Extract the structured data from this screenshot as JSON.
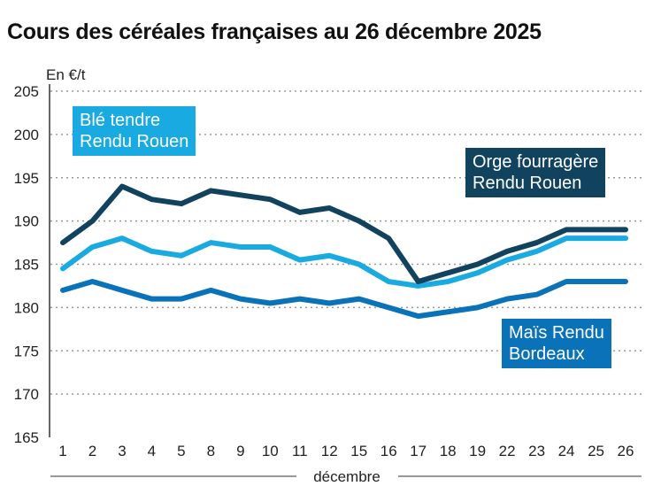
{
  "chart_data": {
    "type": "line",
    "title": "Cours des céréales françaises au 26 décembre 2025",
    "ylabel": "En €/t",
    "xlabel": "décembre",
    "ylim": [
      165,
      205
    ],
    "yticks": [
      165,
      170,
      175,
      180,
      185,
      190,
      195,
      200,
      205
    ],
    "grid": true,
    "categories": [
      "1",
      "2",
      "3",
      "4",
      "5",
      "8",
      "9",
      "10",
      "11",
      "12",
      "15",
      "16",
      "17",
      "18",
      "19",
      "22",
      "23",
      "24",
      "25",
      "26"
    ],
    "series": [
      {
        "name": "Orge fourragère Rendu Rouen",
        "color": "#12435e",
        "values": [
          187.5,
          190,
          194,
          192.5,
          192,
          193.5,
          193,
          192.5,
          191,
          191.5,
          190,
          188,
          183,
          184,
          185,
          186.5,
          187.5,
          189,
          189,
          189
        ]
      },
      {
        "name": "Blé tendre Rendu Rouen",
        "color": "#1aaae2",
        "values": [
          184.5,
          187,
          188,
          186.5,
          186,
          187.5,
          187,
          187,
          185.5,
          186,
          185,
          183,
          182.5,
          183,
          184,
          185.5,
          186.5,
          188,
          188,
          188
        ]
      },
      {
        "name": "Maïs Rendu Bordeaux",
        "color": "#0a72b8",
        "values": [
          182,
          183,
          182,
          181,
          181,
          182,
          181,
          180.5,
          181,
          180.5,
          181,
          180,
          179,
          179.5,
          180,
          181,
          181.5,
          183,
          183,
          183
        ]
      }
    ],
    "legend": {
      "ble": [
        "Blé tendre",
        "Rendu Rouen"
      ],
      "orge": [
        "Orge fourragère",
        "Rendu Rouen"
      ],
      "mais": [
        "Maïs Rendu",
        "Bordeaux"
      ]
    }
  }
}
